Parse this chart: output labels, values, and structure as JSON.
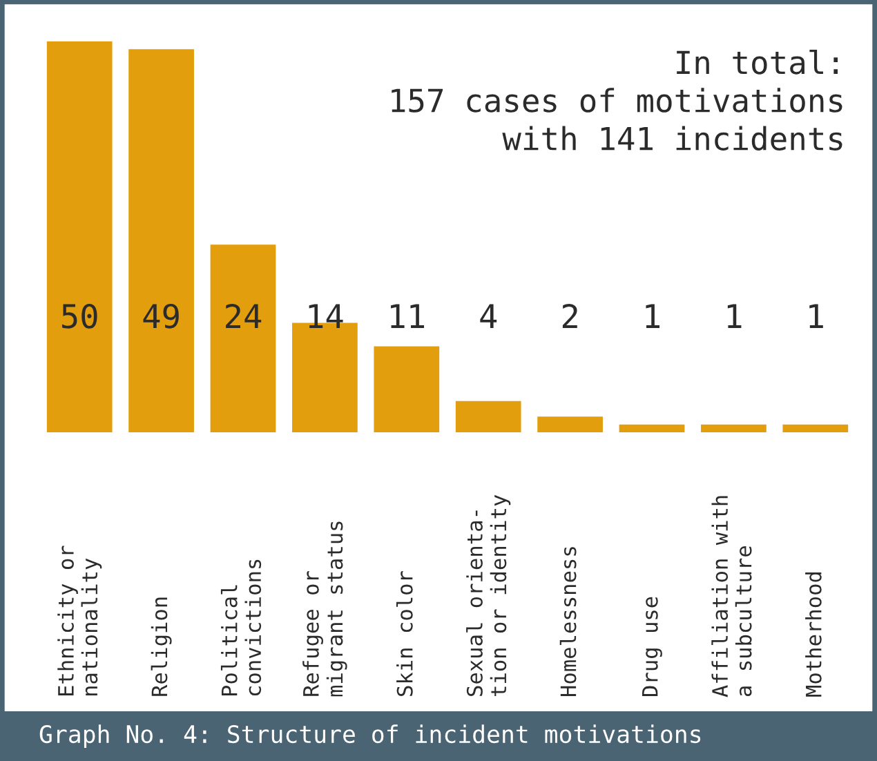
{
  "chart_data": {
    "type": "bar",
    "title": "Graph No. 4: Structure of incident motivations",
    "categories": [
      "Ethnicity or\nnationality",
      "Religion",
      "Political\nconvictions",
      "Refugee or\nmigrant status",
      "Skin color",
      "Sexual orienta-\ntion or identity",
      "Homelessness",
      "Drug use",
      "Affiliation with\na subculture",
      "Motherhood"
    ],
    "values": [
      50,
      49,
      24,
      14,
      11,
      4,
      2,
      1,
      1,
      1
    ],
    "color": "#e39e0d",
    "data_labels": true,
    "annotations": [
      "In total:\n157 cases of motivations\nwith 141 incidents"
    ]
  }
}
